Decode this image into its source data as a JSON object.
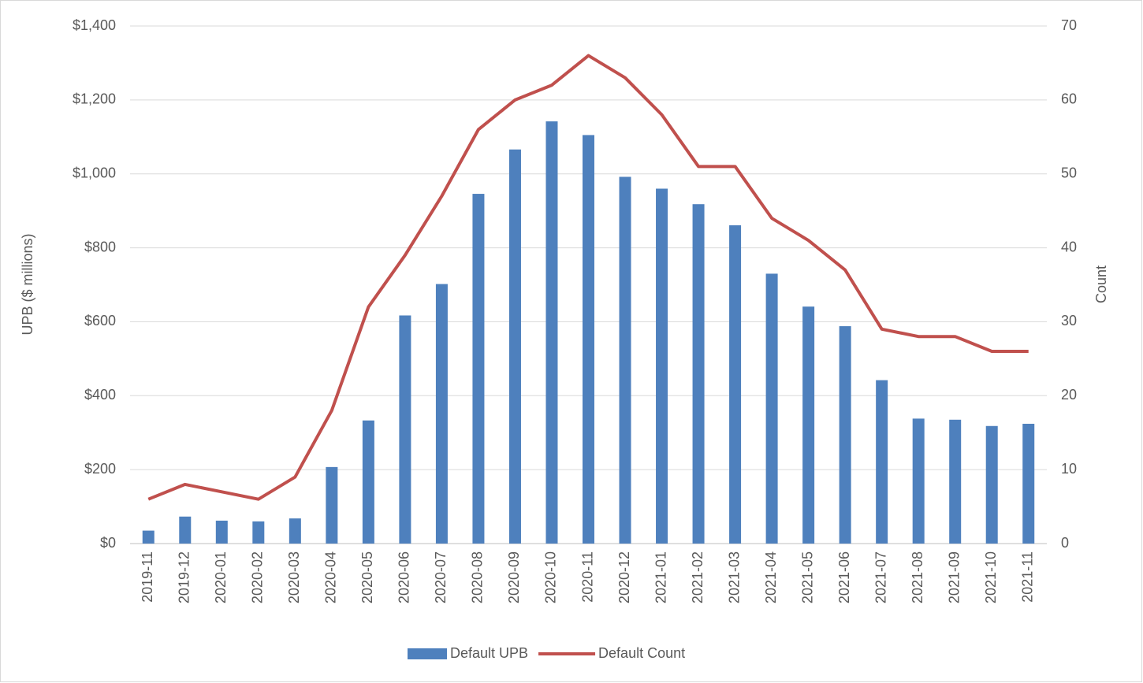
{
  "chart_data": {
    "type": "bar",
    "categories": [
      "2019-11",
      "2019-12",
      "2020-01",
      "2020-02",
      "2020-03",
      "2020-04",
      "2020-05",
      "2020-06",
      "2020-07",
      "2020-08",
      "2020-09",
      "2020-10",
      "2020-11",
      "2020-12",
      "2021-01",
      "2021-02",
      "2021-03",
      "2021-04",
      "2021-05",
      "2021-06",
      "2021-07",
      "2021-08",
      "2021-09",
      "2021-10",
      "2021-11"
    ],
    "series": [
      {
        "name": "Default UPB",
        "type": "bar",
        "color": "#4e80bd",
        "values": [
          35,
          73,
          62,
          60,
          68,
          207,
          333,
          617,
          702,
          946,
          1066,
          1142,
          1105,
          992,
          960,
          918,
          861,
          730,
          641,
          588,
          442,
          338,
          335,
          318,
          324
        ]
      },
      {
        "name": "Default Count",
        "type": "line",
        "axis": "y2",
        "color": "#c0504d",
        "values": [
          6,
          8,
          7,
          6,
          9,
          18,
          32,
          39,
          47,
          56,
          60,
          62,
          66,
          63,
          58,
          51,
          51,
          44,
          41,
          37,
          29,
          28,
          28,
          26,
          26
        ]
      }
    ],
    "ylabel": "UPB ($ millions)",
    "y2label": "Count",
    "ylim": [
      0,
      1400
    ],
    "yticks": [
      {
        "value": 0,
        "label": "$0"
      },
      {
        "value": 200,
        "label": "$200"
      },
      {
        "value": 400,
        "label": "$400"
      },
      {
        "value": 600,
        "label": "$600"
      },
      {
        "value": 800,
        "label": "$800"
      },
      {
        "value": 1000,
        "label": "$1,000"
      },
      {
        "value": 1200,
        "label": "$1,200"
      },
      {
        "value": 1400,
        "label": "$1,400"
      }
    ],
    "y2lim": [
      0,
      70
    ],
    "y2ticks": [
      0,
      10,
      20,
      30,
      40,
      50,
      60,
      70
    ],
    "grid": true,
    "legend": "bottom"
  }
}
